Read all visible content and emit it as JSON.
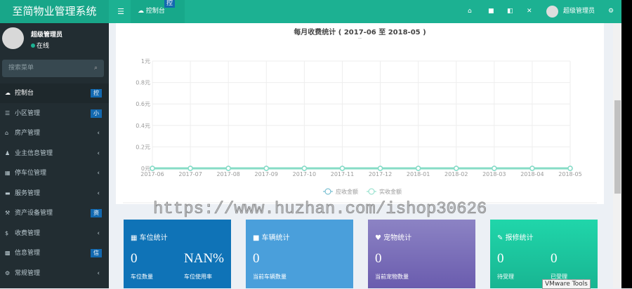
{
  "header": {
    "title": "至简物业管理系统",
    "tab": "控制台",
    "tab_badge": "控",
    "user": "超级管理员"
  },
  "sidebar": {
    "user": "超级管理员",
    "status": "在线",
    "search_placeholder": "搜索菜单",
    "items": [
      {
        "label": "控制台",
        "badge": "控",
        "icon": "dashboard-icon"
      },
      {
        "label": "小区管理",
        "badge": "小",
        "icon": "list-icon"
      },
      {
        "label": "房产管理",
        "chevron": "‹",
        "icon": "home-icon"
      },
      {
        "label": "业主信息管理",
        "chevron": "‹",
        "icon": "user-icon"
      },
      {
        "label": "停车位管理",
        "chevron": "‹",
        "icon": "film-icon"
      },
      {
        "label": "服务管理",
        "chevron": "‹",
        "icon": "keyboard-icon"
      },
      {
        "label": "资产设备管理",
        "badge": "资",
        "icon": "gavel-icon"
      },
      {
        "label": "收费管理",
        "chevron": "‹",
        "icon": "dollar-icon"
      },
      {
        "label": "信息管理",
        "badge": "信",
        "icon": "gift-icon"
      },
      {
        "label": "常规管理",
        "chevron": "‹",
        "icon": "cogs-icon"
      }
    ]
  },
  "chart_data": {
    "type": "line",
    "title": "每月收费统计 ( 2017-06 至 2018-05 )",
    "subtitle": "--",
    "categories": [
      "2017-06",
      "2017-07",
      "2017-08",
      "2017-09",
      "2017-10",
      "2017-11",
      "2017-12",
      "2018-01",
      "2018-02",
      "2018-03",
      "2018-04",
      "2018-05"
    ],
    "yticks": [
      "0元",
      "0.2元",
      "0.4元",
      "0.6元",
      "0.8元",
      "1元"
    ],
    "ylim": [
      0,
      1
    ],
    "grid": true,
    "legend_position": "bottom",
    "series": [
      {
        "name": "应收金额",
        "color": "#5fb3c9",
        "values": [
          0,
          0,
          0,
          0,
          0,
          0,
          0,
          0,
          0,
          0,
          0,
          0
        ]
      },
      {
        "name": "实收金额",
        "color": "#86dcc6",
        "values": [
          0,
          0,
          0,
          0,
          0,
          0,
          0,
          0,
          0,
          0,
          0,
          0
        ]
      }
    ]
  },
  "cards": [
    {
      "title": "车位统计",
      "icon": "film-icon",
      "color": "#0f73b7",
      "stats": [
        {
          "value": "0",
          "label": "车位数量"
        },
        {
          "value": "NAN%",
          "label": "车位使用率"
        }
      ]
    },
    {
      "title": "车辆统计",
      "icon": "truck-icon",
      "color": "#4a9fdb",
      "stats": [
        {
          "value": "0",
          "label": "当前车辆数量"
        }
      ]
    },
    {
      "title": "宠物统计",
      "icon": "heart-icon",
      "color": "#7b6fb6",
      "stats": [
        {
          "value": "0",
          "label": "当前宠物数量"
        }
      ]
    },
    {
      "title": "报修统计",
      "icon": "wrench-icon",
      "color": "#1ec9a0",
      "stats": [
        {
          "value": "0",
          "label": "待受理"
        },
        {
          "value": "0",
          "label": "已受理"
        }
      ]
    }
  ],
  "watermark": "https://www.huzhan.com/ishop30626",
  "tooltip": "VMware Tools"
}
